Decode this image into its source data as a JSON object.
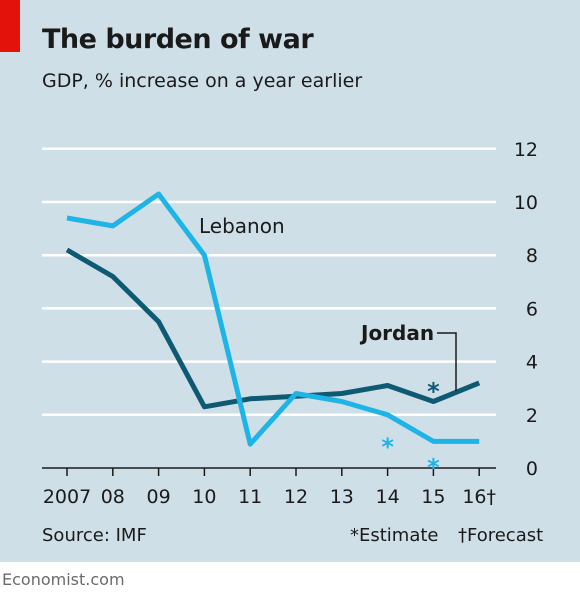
{
  "header": {
    "title": "The burden of war",
    "subtitle": "GDP, % increase on a year earlier"
  },
  "footer": {
    "source": "Source: IMF",
    "estimate_note": "*Estimate",
    "forecast_note": "†Forecast",
    "credit": "Economist.com"
  },
  "colors": {
    "background": "#cfdfe8",
    "jordan": "#0f5a73",
    "lebanon": "#1fb4e6",
    "accent_tag": "#e3120b"
  },
  "chart_data": {
    "type": "line",
    "x": [
      "2007",
      "08",
      "09",
      "10",
      "11",
      "12",
      "13",
      "14",
      "15",
      "16†"
    ],
    "ylim": [
      0,
      12
    ],
    "yticks": [
      0,
      2,
      4,
      6,
      8,
      10,
      12
    ],
    "y_axis_side": "right",
    "grid": true,
    "series": [
      {
        "name": "Lebanon",
        "values": [
          9.4,
          9.1,
          10.3,
          8.0,
          0.9,
          2.8,
          2.5,
          2.0,
          1.0,
          1.0
        ],
        "estimate_marker_index": 7
      },
      {
        "name": "Jordan",
        "values": [
          8.2,
          7.2,
          5.5,
          2.3,
          2.6,
          2.7,
          2.8,
          3.1,
          2.5,
          3.2
        ],
        "estimate_marker_index": 8
      }
    ],
    "estimate_symbol": "*"
  }
}
